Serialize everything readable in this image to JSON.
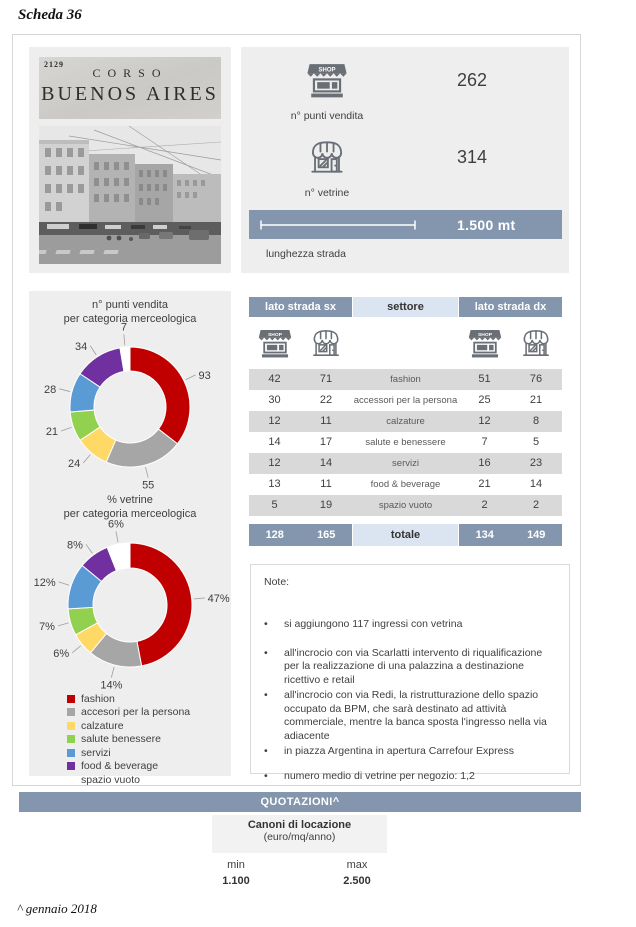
{
  "page": {
    "title": "Scheda 36",
    "footnote": "^ gennaio 2018"
  },
  "photo": {
    "sign_number": "2129",
    "sign_line1": "CORSO",
    "sign_line2": "BUENOS AIRES"
  },
  "stats": {
    "punti_vendita": {
      "value": "262",
      "label": "n° punti vendita"
    },
    "vetrine": {
      "value": "314",
      "label": "n° vetrine"
    },
    "lunghezza": {
      "value": "1.500 mt",
      "label": "lunghezza strada"
    }
  },
  "chart_data": [
    {
      "type": "pie",
      "subtype": "donut",
      "title": "n° punti vendita\nper categoria merceologica",
      "categories": [
        "fashion",
        "accesori per la persona",
        "calzature",
        "salute benessere",
        "servizi",
        "food & beverage",
        "spazio vuoto"
      ],
      "values": [
        93,
        55,
        24,
        21,
        28,
        34,
        7
      ],
      "labels": [
        "93",
        "55",
        "24",
        "21",
        "28",
        "34",
        "7"
      ],
      "colors": [
        "#c00000",
        "#a6a6a6",
        "#ffd966",
        "#92d050",
        "#5b9bd5",
        "#7030a0",
        "#ffffff"
      ],
      "total": 262,
      "legend_position": "none"
    },
    {
      "type": "pie",
      "subtype": "donut",
      "title": "% vetrine\nper categoria merceologica",
      "categories": [
        "fashion",
        "accesori per la persona",
        "calzature",
        "salute benessere",
        "servizi",
        "food & beverage",
        "spazio vuoto"
      ],
      "values": [
        47,
        14,
        6,
        7,
        12,
        8,
        6
      ],
      "labels": [
        "47%",
        "14%",
        "6%",
        "7%",
        "12%",
        "8%",
        "6%"
      ],
      "colors": [
        "#c00000",
        "#a6a6a6",
        "#ffd966",
        "#92d050",
        "#5b9bd5",
        "#7030a0",
        "#ffffff"
      ],
      "total": 100,
      "legend_position": "bottom-left"
    }
  ],
  "legend": {
    "items": [
      {
        "label": "fashion",
        "color": "#c00000"
      },
      {
        "label": "accesori per la persona",
        "color": "#a6a6a6"
      },
      {
        "label": "calzature",
        "color": "#ffd966"
      },
      {
        "label": "salute benessere",
        "color": "#92d050"
      },
      {
        "label": "servizi",
        "color": "#5b9bd5"
      },
      {
        "label": "food & beverage",
        "color": "#7030a0"
      },
      {
        "label": "spazio vuoto",
        "color": "#ffffff"
      }
    ]
  },
  "table": {
    "headers": {
      "sx": "lato strada sx",
      "settore": "settore",
      "dx": "lato strada dx"
    },
    "rows": [
      {
        "sx_shop": "42",
        "sx_vetrine": "71",
        "settore": "fashion",
        "dx_shop": "51",
        "dx_vetrine": "76"
      },
      {
        "sx_shop": "30",
        "sx_vetrine": "22",
        "settore": "accessori per la persona",
        "dx_shop": "25",
        "dx_vetrine": "21"
      },
      {
        "sx_shop": "12",
        "sx_vetrine": "11",
        "settore": "calzature",
        "dx_shop": "12",
        "dx_vetrine": "8"
      },
      {
        "sx_shop": "14",
        "sx_vetrine": "17",
        "settore": "salute e benessere",
        "dx_shop": "7",
        "dx_vetrine": "5"
      },
      {
        "sx_shop": "12",
        "sx_vetrine": "14",
        "settore": "servizi",
        "dx_shop": "16",
        "dx_vetrine": "23"
      },
      {
        "sx_shop": "13",
        "sx_vetrine": "11",
        "settore": "food & beverage",
        "dx_shop": "21",
        "dx_vetrine": "14"
      },
      {
        "sx_shop": "5",
        "sx_vetrine": "19",
        "settore": "spazio vuoto",
        "dx_shop": "2",
        "dx_vetrine": "2"
      }
    ],
    "total": {
      "sx_shop": "128",
      "sx_vetrine": "165",
      "label": "totale",
      "dx_shop": "134",
      "dx_vetrine": "149"
    }
  },
  "notes": {
    "title": "Note:",
    "items": [
      "si aggiungono 117 ingressi con vetrina",
      "all'incrocio con via Scarlatti intervento di riqualificazione per la realizzazione di una palazzina a destinazione ricettivo e retail",
      "all'incrocio con via Redi, la ristrutturazione dello spazio occupato da BPM, che sarà destinato ad attività commerciale, mentre la banca sposta l'ingresso nella via adiacente",
      "in piazza Argentina in apertura Carrefour Express",
      "numero medio di vetrine per negozio: 1,2"
    ]
  },
  "quotazioni": {
    "bar_label": "QUOTAZIONI^",
    "box_title": "Canoni di locazione",
    "box_subtitle": "(euro/mq/anno)",
    "min_label": "min",
    "min_value": "1.100",
    "max_label": "max",
    "max_value": "2.500"
  },
  "colors": {
    "accent_slate": "#8496ad",
    "light_blue": "#dbe5f1",
    "panel_gray": "#eeeeee",
    "row_gray": "#d9d9d9"
  }
}
